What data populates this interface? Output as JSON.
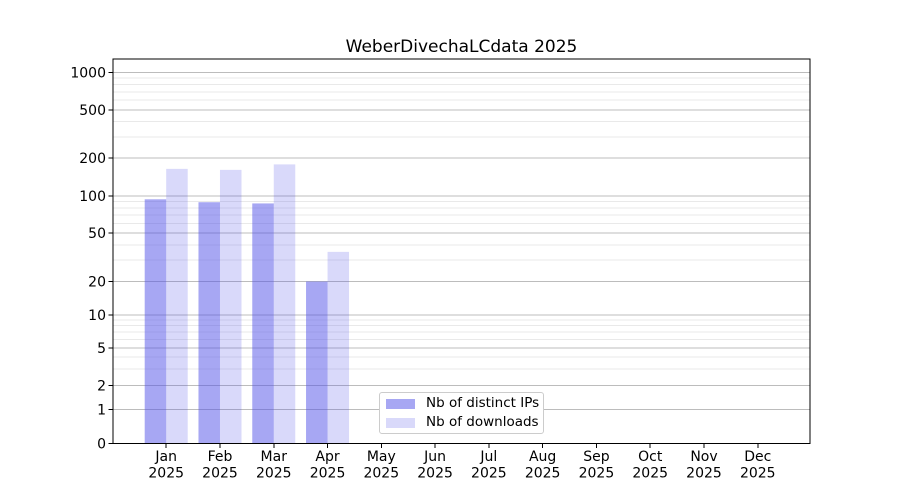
{
  "title": "WeberDivechaLCdata 2025",
  "chart_data": {
    "type": "bar",
    "title": "WeberDivechaLCdata 2025",
    "categories": [
      "Jan",
      "Feb",
      "Mar",
      "Apr",
      "May",
      "Jun",
      "Jul",
      "Aug",
      "Sep",
      "Oct",
      "Nov",
      "Dec"
    ],
    "x_tick_second_line": "2025",
    "series": [
      {
        "name": "Nb of distinct IPs",
        "color": "rgba(80,80,232,0.50)",
        "values": [
          94,
          89,
          87,
          20,
          0,
          0,
          0,
          0,
          0,
          0,
          0,
          0
        ]
      },
      {
        "name": "Nb of downloads",
        "color": "rgba(80,80,232,0.22)",
        "values": [
          164,
          161,
          178,
          35,
          0,
          0,
          0,
          0,
          0,
          0,
          0,
          0
        ]
      }
    ],
    "yscale": "symlog",
    "yticks": [
      0,
      1,
      2,
      5,
      10,
      20,
      50,
      100,
      200,
      500,
      1000
    ],
    "ylim": [
      0,
      1300
    ],
    "grid": true,
    "legend_position": "lower center",
    "colors": {
      "background": "#ffffff",
      "grid_major": "#bcbcbc",
      "grid_minor": "#e9e9e9",
      "axis": "#000000",
      "text": "#000000"
    }
  }
}
